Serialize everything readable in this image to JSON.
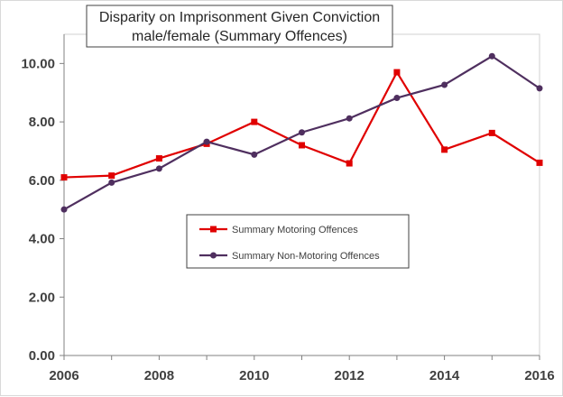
{
  "chart_data": {
    "type": "line",
    "title": "Disparity on Imprisonment Given Conviction",
    "subtitle": "male/female (Summary Offences)",
    "xlabel": "",
    "ylabel": "",
    "x": [
      2006,
      2007,
      2008,
      2009,
      2010,
      2011,
      2012,
      2013,
      2014,
      2015,
      2016
    ],
    "xlim": [
      2006,
      2016
    ],
    "ylim": [
      0,
      11
    ],
    "x_ticks": [
      "2006",
      "2008",
      "2010",
      "2012",
      "2014",
      "2016"
    ],
    "y_ticks": [
      "0.00",
      "2.00",
      "4.00",
      "6.00",
      "8.00",
      "10.00"
    ],
    "grid": false,
    "legend_position": "center",
    "series": [
      {
        "name": "Summary Motoring Offences",
        "color": "#e00000",
        "marker": "square",
        "values": [
          6.1,
          6.16,
          6.75,
          7.25,
          8.0,
          7.2,
          6.58,
          9.7,
          7.05,
          7.62,
          6.6
        ]
      },
      {
        "name": "Summary Non-Motoring Offences",
        "color": "#4f2f5f",
        "marker": "circle",
        "values": [
          5.0,
          5.92,
          6.4,
          7.32,
          6.88,
          7.64,
          8.12,
          8.82,
          9.27,
          10.25,
          9.15
        ]
      }
    ]
  }
}
